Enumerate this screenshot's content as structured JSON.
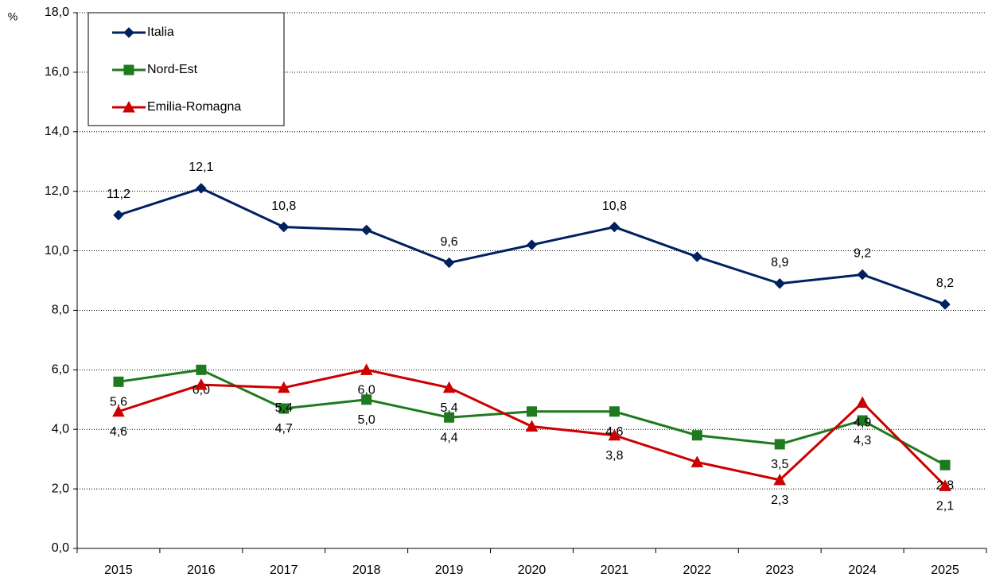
{
  "chart_data": {
    "type": "line",
    "y_label": "%",
    "categories": [
      "2015",
      "2016",
      "2017",
      "2018",
      "2019",
      "2020",
      "2021",
      "2022",
      "2023",
      "2024",
      "2025"
    ],
    "ylim": [
      0,
      18
    ],
    "yticks": [
      {
        "value": 0,
        "label": "0,0"
      },
      {
        "value": 2,
        "label": "2,0"
      },
      {
        "value": 4,
        "label": "4,0"
      },
      {
        "value": 6,
        "label": "6,0"
      },
      {
        "value": 8,
        "label": "8,0"
      },
      {
        "value": 10,
        "label": "10,0"
      },
      {
        "value": 12,
        "label": "12,0"
      },
      {
        "value": 14,
        "label": "14,0"
      },
      {
        "value": 16,
        "label": "16,0"
      },
      {
        "value": 18,
        "label": "18,0"
      }
    ],
    "grid": true,
    "legend": "top-left",
    "series": [
      {
        "name": "Italia",
        "color": "#002060",
        "marker": "diamond",
        "values": [
          11.2,
          12.1,
          10.8,
          10.7,
          9.6,
          10.2,
          10.8,
          9.8,
          8.9,
          9.2,
          8.2
        ],
        "value_labels": [
          "11,2",
          "12,1",
          "10,8",
          null,
          "9,6",
          null,
          "10,8",
          null,
          "8,9",
          "9,2",
          "8,2"
        ]
      },
      {
        "name": "Nord-Est",
        "color": "#1e7a1e",
        "marker": "square",
        "values": [
          5.6,
          6.0,
          4.7,
          5.0,
          4.4,
          4.6,
          4.6,
          3.8,
          3.5,
          4.3,
          2.8
        ],
        "value_labels": [
          "5,6",
          "6,0",
          "4,7",
          "5,0",
          "4,4",
          null,
          "4,6",
          null,
          "3,5",
          "4,3",
          "2,8"
        ]
      },
      {
        "name": "Emilia-Romagna",
        "color": "#cc0000",
        "marker": "triangle",
        "values": [
          4.6,
          5.5,
          5.4,
          6.0,
          5.4,
          4.1,
          3.8,
          2.9,
          2.3,
          4.9,
          2.1
        ],
        "value_labels": [
          "4,6",
          null,
          "5,4",
          "6,0",
          "5,4",
          null,
          "3,8",
          null,
          "2,3",
          "4,9",
          "2,1"
        ]
      }
    ]
  }
}
